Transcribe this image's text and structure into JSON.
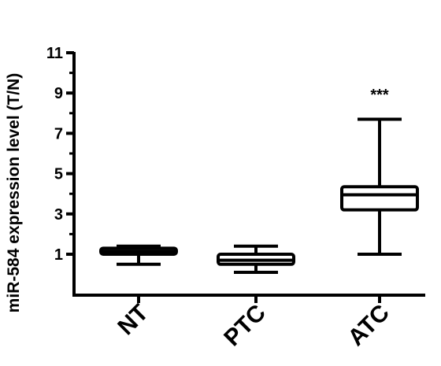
{
  "chart_data": {
    "type": "box",
    "ylabel": "miR-584 expression level (T/N)",
    "ylim": [
      -0.8,
      11
    ],
    "yticks": [
      1,
      3,
      5,
      7,
      9,
      11
    ],
    "categories": [
      "NT",
      "PTC",
      "ATC"
    ],
    "boxes": [
      {
        "category": "NT",
        "min": 0.5,
        "q1": 1.0,
        "median": 1.15,
        "q3": 1.3,
        "max": 1.4
      },
      {
        "category": "PTC",
        "min": 0.1,
        "q1": 0.5,
        "median": 0.7,
        "q3": 1.0,
        "max": 1.4
      },
      {
        "category": "ATC",
        "min": 1.0,
        "q1": 3.2,
        "median": 3.95,
        "q3": 4.35,
        "max": 7.7
      }
    ],
    "annotations": [
      {
        "category": "ATC",
        "text": "***"
      }
    ],
    "grid": false,
    "colors": {
      "line": "#000000",
      "box_fill": "#ffffff"
    }
  }
}
